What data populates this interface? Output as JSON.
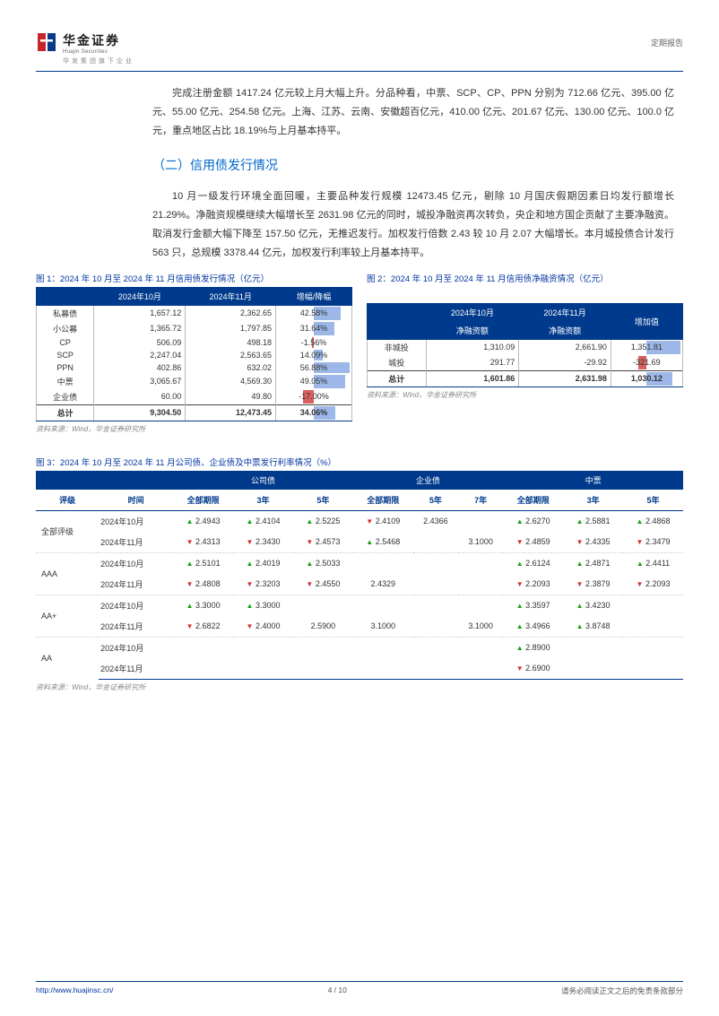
{
  "header": {
    "logo_cn": "华金证券",
    "logo_en": "Huajin Securities",
    "logo_sub": "华发集团旗下企业",
    "report_type": "定期报告"
  },
  "para1": "完成注册金额 1417.24 亿元较上月大幅上升。分品种看，中票、SCP、CP、PPN 分别为 712.66 亿元、395.00 亿元、55.00 亿元、254.58 亿元。上海、江苏、云南、安徽超百亿元，410.00 亿元、201.67 亿元、130.00 亿元、100.0 亿元，重点地区占比 18.19%与上月基本持平。",
  "section_heading": "（二）信用债发行情况",
  "para2": "10 月一级发行环境全面回暖，主要品种发行规模 12473.45 亿元，剔除 10 月国庆假期因素日均发行额增长 21.29%。净融资规模继续大幅增长至 2631.98 亿元的同时，城投净融资再次转负，央企和地方国企贡献了主要净融资。取消发行金额大幅下降至 157.50 亿元，无推迟发行。加权发行倍数 2.43 较 10 月 2.07 大幅增长。本月城投债合计发行 563 只，总规模 3378.44 亿元，加权发行利率较上月基本持平。",
  "fig1": {
    "title": "图 1：2024 年 10 月至 2024 年 11 月信用债发行情况（亿元）",
    "cols": [
      "",
      "2024年10月",
      "2024年11月",
      "增幅/降幅"
    ],
    "rows": [
      {
        "name": "私募债",
        "oct": "1,657.12",
        "nov": "2,362.65",
        "pct": "42.58%",
        "dir": "up",
        "w": 75
      },
      {
        "name": "小公募",
        "oct": "1,365.72",
        "nov": "1,797.85",
        "pct": "31.64%",
        "dir": "up",
        "w": 56
      },
      {
        "name": "CP",
        "oct": "506.09",
        "nov": "498.18",
        "pct": "-1.56%",
        "dir": "dn",
        "w": 4
      },
      {
        "name": "SCP",
        "oct": "2,247.04",
        "nov": "2,563.65",
        "pct": "14.09%",
        "dir": "up",
        "w": 25
      },
      {
        "name": "PPN",
        "oct": "402.86",
        "nov": "632.02",
        "pct": "56.88%",
        "dir": "up",
        "w": 100
      },
      {
        "name": "中票",
        "oct": "3,065.67",
        "nov": "4,569.30",
        "pct": "49.05%",
        "dir": "up",
        "w": 86
      },
      {
        "name": "企业债",
        "oct": "60.00",
        "nov": "49.80",
        "pct": "-17.00%",
        "dir": "dn",
        "w": 30
      }
    ],
    "total": {
      "name": "总计",
      "oct": "9,304.50",
      "nov": "12,473.45",
      "pct": "34.06%",
      "dir": "up",
      "w": 60
    },
    "source": "资料来源：Wind，华金证券研究所"
  },
  "fig2": {
    "title": "图 2：2024 年 10 月至 2024 年 11 月信用债净融资情况（亿元）",
    "cols": [
      "",
      "2024年10月净融资额",
      "2024年11月净融资额",
      "增加值"
    ],
    "cols_l1": [
      "",
      "2024年10月",
      "2024年11月",
      ""
    ],
    "cols_l2": [
      "",
      "净融资额",
      "净融资额",
      "增加值"
    ],
    "rows": [
      {
        "name": "非城投",
        "oct": "1,310.09",
        "nov": "2,661.90",
        "inc": "1,351.81",
        "dir": "up",
        "w": 100
      },
      {
        "name": "城投",
        "oct": "291.77",
        "nov": "-29.92",
        "inc": "-321.69",
        "dir": "dn",
        "w": 24
      }
    ],
    "total": {
      "name": "总计",
      "oct": "1,601.86",
      "nov": "2,631.98",
      "inc": "1,030.12",
      "dir": "up",
      "w": 76
    },
    "source": "资料来源：Wind，华金证券研究所"
  },
  "fig3": {
    "title": "图 3：2024 年 10 月至 2024 年 11 月公司债、企业债及中票发行利率情况（%）",
    "groups": [
      "公司债",
      "企业债",
      "中票"
    ],
    "subcols": [
      "评级",
      "时间",
      "全部期限",
      "3年",
      "5年",
      "全部期限",
      "5年",
      "7年",
      "全部期限",
      "3年",
      "5年"
    ],
    "rows": [
      {
        "rating": "全部评级",
        "time": "2024年10月",
        "v": [
          {
            "d": "u",
            "t": "2.4943"
          },
          {
            "d": "u",
            "t": "2.4104"
          },
          {
            "d": "u",
            "t": "2.5225"
          },
          {
            "d": "d",
            "t": "2.4109"
          },
          {
            "d": "",
            "t": "2.4366"
          },
          {
            "d": "",
            "t": ""
          },
          {
            "d": "u",
            "t": "2.6270"
          },
          {
            "d": "u",
            "t": "2.5881"
          },
          {
            "d": "u",
            "t": "2.4868"
          }
        ]
      },
      {
        "rating": "",
        "time": "2024年11月",
        "v": [
          {
            "d": "d",
            "t": "2.4313"
          },
          {
            "d": "d",
            "t": "2.3430"
          },
          {
            "d": "d",
            "t": "2.4573"
          },
          {
            "d": "u",
            "t": "2.5468"
          },
          {
            "d": "",
            "t": ""
          },
          {
            "d": "",
            "t": "3.1000"
          },
          {
            "d": "d",
            "t": "2.4859"
          },
          {
            "d": "d",
            "t": "2.4335"
          },
          {
            "d": "d",
            "t": "2.3479"
          }
        ],
        "grp": true
      },
      {
        "rating": "AAA",
        "time": "2024年10月",
        "v": [
          {
            "d": "u",
            "t": "2.5101"
          },
          {
            "d": "u",
            "t": "2.4019"
          },
          {
            "d": "u",
            "t": "2.5033"
          },
          {
            "d": "",
            "t": ""
          },
          {
            "d": "",
            "t": ""
          },
          {
            "d": "",
            "t": ""
          },
          {
            "d": "u",
            "t": "2.6124"
          },
          {
            "d": "u",
            "t": "2.4871"
          },
          {
            "d": "u",
            "t": "2.4411"
          }
        ]
      },
      {
        "rating": "",
        "time": "2024年11月",
        "v": [
          {
            "d": "d",
            "t": "2.4808"
          },
          {
            "d": "d",
            "t": "2.3203"
          },
          {
            "d": "d",
            "t": "2.4550"
          },
          {
            "d": "",
            "t": "2.4329"
          },
          {
            "d": "",
            "t": ""
          },
          {
            "d": "",
            "t": ""
          },
          {
            "d": "d",
            "t": "2.2093"
          },
          {
            "d": "d",
            "t": "2.3879"
          },
          {
            "d": "d",
            "t": "2.2093"
          }
        ],
        "grp": true
      },
      {
        "rating": "AA+",
        "time": "2024年10月",
        "v": [
          {
            "d": "u",
            "t": "3.3000"
          },
          {
            "d": "u",
            "t": "3.3000"
          },
          {
            "d": "",
            "t": ""
          },
          {
            "d": "",
            "t": ""
          },
          {
            "d": "",
            "t": ""
          },
          {
            "d": "",
            "t": ""
          },
          {
            "d": "u",
            "t": "3.3597"
          },
          {
            "d": "u",
            "t": "3.4230"
          },
          {
            "d": "",
            "t": ""
          }
        ]
      },
      {
        "rating": "",
        "time": "2024年11月",
        "v": [
          {
            "d": "d",
            "t": "2.6822"
          },
          {
            "d": "d",
            "t": "2.4000"
          },
          {
            "d": "",
            "t": "2.5900"
          },
          {
            "d": "",
            "t": "3.1000"
          },
          {
            "d": "",
            "t": ""
          },
          {
            "d": "",
            "t": "3.1000"
          },
          {
            "d": "u",
            "t": "3.4966"
          },
          {
            "d": "u",
            "t": "3.8748"
          },
          {
            "d": "",
            "t": ""
          }
        ],
        "grp": true
      },
      {
        "rating": "AA",
        "time": "2024年10月",
        "v": [
          {
            "d": "",
            "t": ""
          },
          {
            "d": "",
            "t": ""
          },
          {
            "d": "",
            "t": ""
          },
          {
            "d": "",
            "t": ""
          },
          {
            "d": "",
            "t": ""
          },
          {
            "d": "",
            "t": ""
          },
          {
            "d": "u",
            "t": "2.8900"
          },
          {
            "d": "",
            "t": ""
          },
          {
            "d": "",
            "t": ""
          }
        ]
      },
      {
        "rating": "",
        "time": "2024年11月",
        "v": [
          {
            "d": "",
            "t": ""
          },
          {
            "d": "",
            "t": ""
          },
          {
            "d": "",
            "t": ""
          },
          {
            "d": "",
            "t": ""
          },
          {
            "d": "",
            "t": ""
          },
          {
            "d": "",
            "t": ""
          },
          {
            "d": "d",
            "t": "2.6900"
          },
          {
            "d": "",
            "t": ""
          },
          {
            "d": "",
            "t": ""
          }
        ],
        "grp": false
      }
    ],
    "source": "资料来源：Wind，华金证券研究所"
  },
  "footer": {
    "url": "http://www.huajinsc.cn/",
    "page": "4 / 10",
    "disclaimer": "请务必阅读正文之后的免责条款部分"
  },
  "colors": {
    "brand_blue": "#003a8c",
    "link_blue": "#0033a0",
    "heading_blue": "#0066cc",
    "bar_pos": "#9db8e8",
    "bar_neg": "#d96060",
    "up": "#16a016",
    "dn": "#d03030",
    "logo_red": "#c8242b",
    "logo_blue": "#0a3a87"
  }
}
